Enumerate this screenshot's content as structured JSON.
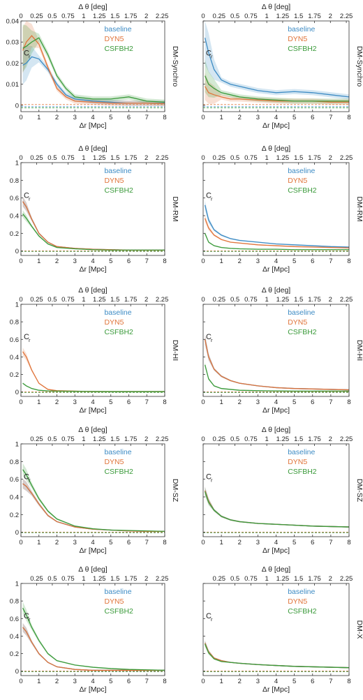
{
  "colors": {
    "baseline": "#3d8bc4",
    "DYN5": "#e0743a",
    "CSFBH2": "#3a9a3a",
    "axis": "#333333",
    "grid": "#cccccc"
  },
  "axes_text": {
    "x_label": "Δr [Mpc]",
    "top_label": "Δ θ [deg]",
    "y_label": "C",
    "y_label_sub": "r"
  },
  "legend": [
    "baseline",
    "DYN5",
    "CSFBH2"
  ],
  "top_ticks": [
    "0",
    "0.25",
    "0.5",
    "0.75",
    "1",
    "1.25",
    "1.5",
    "1.75",
    "2",
    "2.25"
  ],
  "top_tick_values": [
    0,
    0.25,
    0.5,
    0.75,
    1,
    1.25,
    1.5,
    1.75,
    2,
    2.25
  ],
  "chart_data": [
    {
      "type": "line",
      "panel": "row1-left",
      "row_label": "DM-Synchro",
      "xlabel": "Δr [Mpc]",
      "top_xlabel": "Δ θ [deg]",
      "ylabel": "C_r",
      "xlim": [
        0,
        8
      ],
      "ylim": [
        -0.003,
        0.04
      ],
      "yticks": [
        0,
        0.01,
        0.02,
        0.03,
        0.04
      ],
      "ytick_labels": [
        "0",
        "0.01",
        "0.02",
        "0.03",
        "0.04"
      ],
      "top_ticks_shown": [
        0,
        0.25,
        0.5,
        0.75,
        1,
        1.25,
        1.5,
        1.75,
        2,
        2.25
      ],
      "x": [
        0.1,
        0.3,
        0.6,
        1,
        1.5,
        2,
        2.5,
        3,
        4,
        5,
        6,
        7,
        8
      ],
      "series": [
        {
          "name": "baseline",
          "values": [
            0.019,
            0.02,
            0.023,
            0.022,
            0.017,
            0.01,
            0.005,
            0.003,
            0.002,
            0.0015,
            0.001,
            0.001,
            0.001
          ]
        },
        {
          "name": "DYN5",
          "values": [
            0.026,
            0.03,
            0.033,
            0.029,
            0.018,
            0.008,
            0.004,
            0.002,
            0.0015,
            0.001,
            0.001,
            0.001,
            0.0008
          ]
        },
        {
          "name": "CSFBH2",
          "values": [
            0.027,
            0.028,
            0.03,
            0.032,
            0.024,
            0.014,
            0.008,
            0.004,
            0.003,
            0.003,
            0.004,
            0.002,
            0.0015
          ]
        }
      ]
    },
    {
      "type": "line",
      "panel": "row1-right",
      "row_label": "DM-Synchro",
      "xlabel": "Δr [Mpc]",
      "top_xlabel": "Δ θ [deg]",
      "ylabel": "C_r",
      "xlim": [
        0,
        8
      ],
      "ylim": [
        -0.003,
        0.04
      ],
      "yticks": [
        0,
        0.01,
        0.02,
        0.03,
        0.04
      ],
      "ytick_labels": [
        "0",
        "0.01",
        "0.02",
        "0.03",
        "0.04"
      ],
      "top_ticks_shown": [
        0,
        0.25,
        0.5,
        0.75,
        1,
        1.25,
        1.5,
        1.75,
        2,
        2.25
      ],
      "x": [
        0.1,
        0.3,
        0.6,
        1,
        1.5,
        2,
        3,
        4,
        5,
        6,
        7,
        8
      ],
      "series": [
        {
          "name": "baseline",
          "values": [
            0.032,
            0.025,
            0.017,
            0.012,
            0.01,
            0.009,
            0.007,
            0.006,
            0.0065,
            0.006,
            0.005,
            0.004
          ]
        },
        {
          "name": "DYN5",
          "values": [
            0.009,
            0.006,
            0.005,
            0.004,
            0.003,
            0.003,
            0.0025,
            0.002,
            0.002,
            0.002,
            0.0015,
            0.0015
          ]
        },
        {
          "name": "CSFBH2",
          "values": [
            0.014,
            0.01,
            0.008,
            0.006,
            0.005,
            0.004,
            0.003,
            0.0025,
            0.002,
            0.002,
            0.002,
            0.002
          ]
        }
      ]
    },
    {
      "type": "line",
      "panel": "row2-left",
      "row_label": "DM-RM",
      "xlabel": "Δr [Mpc]",
      "top_xlabel": "Δ θ [deg]",
      "ylabel": "C_r",
      "xlim": [
        0,
        8
      ],
      "ylim": [
        -0.05,
        1
      ],
      "yticks": [
        0,
        0.2,
        0.4,
        0.6,
        0.8,
        1
      ],
      "ytick_labels": [
        "0",
        "0.2",
        "0.4",
        "0.6",
        "0.8",
        "1"
      ],
      "top_ticks_shown": [
        0,
        0.25,
        0.5,
        0.75,
        1,
        1.25,
        1.5,
        1.75,
        2,
        2.25
      ],
      "x": [
        0.1,
        0.3,
        0.6,
        1,
        1.5,
        2,
        3,
        4,
        5,
        6,
        7,
        8
      ],
      "series": [
        {
          "name": "baseline",
          "values": [
            0.56,
            0.5,
            0.36,
            0.2,
            0.1,
            0.05,
            0.03,
            0.02,
            0.015,
            0.01,
            0.01,
            0.01
          ]
        },
        {
          "name": "DYN5",
          "values": [
            0.56,
            0.5,
            0.36,
            0.2,
            0.1,
            0.05,
            0.03,
            0.02,
            0.015,
            0.01,
            0.01,
            0.01
          ]
        },
        {
          "name": "CSFBH2",
          "values": [
            0.42,
            0.37,
            0.28,
            0.17,
            0.08,
            0.04,
            0.025,
            0.015,
            0.01,
            0.01,
            0.01,
            0.01
          ]
        }
      ]
    },
    {
      "type": "line",
      "panel": "row2-right",
      "row_label": "DM-RM",
      "xlabel": "Δr [Mpc]",
      "top_xlabel": "Δ θ [deg]",
      "ylabel": "C_r",
      "xlim": [
        0,
        8
      ],
      "ylim": [
        -0.05,
        1
      ],
      "yticks": [
        0,
        0.2,
        0.4,
        0.6,
        0.8,
        1
      ],
      "ytick_labels": [
        "0",
        "0.2",
        "0.4",
        "0.6",
        "0.8",
        "1"
      ],
      "top_ticks_shown": [
        0,
        0.25,
        0.5,
        0.75,
        1,
        1.25,
        1.5,
        1.75,
        2,
        2.25
      ],
      "x": [
        0.1,
        0.3,
        0.6,
        1,
        1.5,
        2,
        3,
        4,
        5,
        6,
        7,
        8
      ],
      "series": [
        {
          "name": "baseline",
          "values": [
            0.52,
            0.35,
            0.24,
            0.18,
            0.14,
            0.12,
            0.1,
            0.08,
            0.07,
            0.06,
            0.05,
            0.045
          ]
        },
        {
          "name": "DYN5",
          "values": [
            0.37,
            0.26,
            0.18,
            0.13,
            0.1,
            0.09,
            0.07,
            0.06,
            0.05,
            0.045,
            0.04,
            0.035
          ]
        },
        {
          "name": "CSFBH2",
          "values": [
            0.2,
            0.1,
            0.06,
            0.04,
            0.03,
            0.025,
            0.02,
            0.02,
            0.015,
            0.015,
            0.015,
            0.015
          ]
        }
      ]
    },
    {
      "type": "line",
      "panel": "row3-left",
      "row_label": "DM-HI",
      "xlabel": "Δr [Mpc]",
      "top_xlabel": "Δ θ [deg]",
      "ylabel": "C_r",
      "xlim": [
        0,
        8
      ],
      "ylim": [
        -0.05,
        1
      ],
      "yticks": [
        0,
        0.2,
        0.4,
        0.6,
        0.8,
        1
      ],
      "ytick_labels": [
        "0",
        "0.2",
        "0.4",
        "0.6",
        "0.8",
        "1"
      ],
      "top_ticks_shown": [
        0,
        0.25,
        0.5,
        0.75,
        1,
        1.25,
        1.5,
        1.75,
        2,
        2.25
      ],
      "x": [
        0.1,
        0.3,
        0.6,
        1,
        1.5,
        2,
        3,
        4,
        5,
        6,
        7,
        8
      ],
      "series": [
        {
          "name": "DYN5",
          "values": [
            0.46,
            0.4,
            0.25,
            0.1,
            0.03,
            0.015,
            0.01,
            0.005,
            0.005,
            0.005,
            0.005,
            0.005
          ]
        },
        {
          "name": "CSFBH2",
          "values": [
            0.1,
            0.07,
            0.04,
            0.02,
            0.012,
            0.01,
            0.008,
            0.006,
            0.005,
            0.005,
            0.005,
            0.005
          ]
        }
      ]
    },
    {
      "type": "line",
      "panel": "row3-right",
      "row_label": "DM-HI",
      "xlabel": "Δr [Mpc]",
      "top_xlabel": "Δ θ [deg]",
      "ylabel": "C_r",
      "xlim": [
        0,
        8
      ],
      "ylim": [
        -0.05,
        1
      ],
      "yticks": [
        0,
        0.2,
        0.4,
        0.6,
        0.8,
        1
      ],
      "ytick_labels": [
        "0",
        "0.2",
        "0.4",
        "0.6",
        "0.8",
        "1"
      ],
      "top_ticks_shown": [
        0,
        0.25,
        0.5,
        0.75,
        1,
        1.25,
        1.5,
        1.75,
        2,
        2.25
      ],
      "x": [
        0.1,
        0.3,
        0.6,
        1,
        1.5,
        2,
        3,
        4,
        5,
        6,
        7,
        8
      ],
      "series": [
        {
          "name": "baseline",
          "values": [
            0.6,
            0.4,
            0.26,
            0.18,
            0.13,
            0.1,
            0.07,
            0.05,
            0.04,
            0.035,
            0.03,
            0.025
          ]
        },
        {
          "name": "DYN5",
          "values": [
            0.6,
            0.4,
            0.26,
            0.18,
            0.13,
            0.1,
            0.07,
            0.05,
            0.04,
            0.035,
            0.03,
            0.025
          ]
        },
        {
          "name": "CSFBH2",
          "values": [
            0.31,
            0.15,
            0.07,
            0.04,
            0.03,
            0.02,
            0.015,
            0.012,
            0.01,
            0.01,
            0.01,
            0.01
          ]
        }
      ]
    },
    {
      "type": "line",
      "panel": "row4-left",
      "row_label": "DM-SZ",
      "xlabel": "Δr [Mpc]",
      "top_xlabel": "Δ θ [deg]",
      "ylabel": "C_r",
      "xlim": [
        0,
        8
      ],
      "ylim": [
        -0.05,
        1
      ],
      "yticks": [
        0,
        0.2,
        0.4,
        0.6,
        0.8,
        1
      ],
      "ytick_labels": [
        "0",
        "0.2",
        "0.4",
        "0.6",
        "0.8",
        "1"
      ],
      "top_ticks_shown": [
        0.25,
        0.5,
        0.75,
        1,
        1.25,
        1.5,
        1.75,
        2,
        2.25
      ],
      "x": [
        0.1,
        0.3,
        0.6,
        1,
        1.5,
        2,
        3,
        4,
        5,
        6,
        7,
        8
      ],
      "series": [
        {
          "name": "baseline",
          "values": [
            0.55,
            0.52,
            0.44,
            0.32,
            0.19,
            0.12,
            0.06,
            0.035,
            0.025,
            0.015,
            0.01,
            0.01
          ]
        },
        {
          "name": "DYN5",
          "values": [
            0.55,
            0.52,
            0.44,
            0.32,
            0.19,
            0.12,
            0.06,
            0.035,
            0.025,
            0.015,
            0.01,
            0.01
          ]
        },
        {
          "name": "CSFBH2",
          "values": [
            0.71,
            0.65,
            0.53,
            0.38,
            0.24,
            0.15,
            0.07,
            0.04,
            0.025,
            0.02,
            0.015,
            0.01
          ]
        }
      ]
    },
    {
      "type": "line",
      "panel": "row4-right",
      "row_label": "DM-SZ",
      "xlabel": "Δr [Mpc]",
      "top_xlabel": "Δ θ [deg]",
      "ylabel": "C_r",
      "xlim": [
        0,
        8
      ],
      "ylim": [
        -0.05,
        1
      ],
      "yticks": [
        0,
        0.2,
        0.4,
        0.6,
        0.8,
        1
      ],
      "ytick_labels": [
        "0",
        "0.2",
        "0.4",
        "0.6",
        "0.8",
        "1"
      ],
      "top_ticks_shown": [
        0,
        0.25,
        0.5,
        0.75,
        1,
        1.25,
        1.5,
        1.75,
        2,
        2.25
      ],
      "x": [
        0.1,
        0.3,
        0.6,
        1,
        1.5,
        2,
        3,
        4,
        5,
        6,
        7,
        8
      ],
      "series": [
        {
          "name": "baseline",
          "values": [
            0.47,
            0.35,
            0.25,
            0.18,
            0.14,
            0.12,
            0.1,
            0.09,
            0.08,
            0.07,
            0.065,
            0.06
          ]
        },
        {
          "name": "DYN5",
          "values": [
            0.47,
            0.35,
            0.25,
            0.18,
            0.14,
            0.12,
            0.1,
            0.09,
            0.08,
            0.07,
            0.065,
            0.06
          ]
        },
        {
          "name": "CSFBH2",
          "values": [
            0.46,
            0.34,
            0.25,
            0.18,
            0.14,
            0.12,
            0.1,
            0.09,
            0.08,
            0.07,
            0.065,
            0.06
          ]
        }
      ]
    },
    {
      "type": "line",
      "panel": "row5-left",
      "row_label": "",
      "xlabel": "Δr [Mpc]",
      "top_xlabel": "Δ θ [deg]",
      "ylabel": "C_r",
      "xlim": [
        0,
        8
      ],
      "ylim": [
        -0.05,
        1
      ],
      "yticks": [
        0,
        0.2,
        0.4,
        0.6,
        0.8,
        1
      ],
      "ytick_labels": [
        "0",
        "0.2",
        "0.4",
        "0.6",
        "0.8",
        "1"
      ],
      "top_ticks_shown": [
        0.25,
        0.5,
        0.75,
        1,
        1.25,
        1.5,
        1.75,
        2,
        2.25
      ],
      "x": [
        0.1,
        0.3,
        0.6,
        1,
        1.5,
        2,
        3,
        4,
        5,
        6,
        7,
        8
      ],
      "series": [
        {
          "name": "baseline",
          "values": [
            0.5,
            0.45,
            0.33,
            0.2,
            0.1,
            0.05,
            0.02,
            0.01,
            0.01,
            0.01,
            0.01,
            0.01
          ]
        },
        {
          "name": "DYN5",
          "values": [
            0.5,
            0.45,
            0.33,
            0.2,
            0.1,
            0.05,
            0.02,
            0.01,
            0.01,
            0.01,
            0.01,
            0.01
          ]
        },
        {
          "name": "CSFBH2",
          "values": [
            0.72,
            0.64,
            0.5,
            0.35,
            0.2,
            0.12,
            0.07,
            0.045,
            0.03,
            0.02,
            0.015,
            0.01
          ]
        }
      ]
    },
    {
      "type": "line",
      "panel": "row5-right",
      "row_label": "DM-X",
      "xlabel": "Δr [Mpc]",
      "top_xlabel": "Δ θ [deg]",
      "ylabel": "C_r",
      "xlim": [
        0,
        8
      ],
      "ylim": [
        -0.05,
        1
      ],
      "yticks": [
        0,
        0.2,
        0.4,
        0.6,
        0.8,
        1
      ],
      "ytick_labels": [
        "0",
        "0.2",
        "0.4",
        "0.6",
        "0.8",
        "1"
      ],
      "top_ticks_shown": [
        0.25,
        0.5,
        0.75,
        1,
        1.25,
        1.5,
        1.75,
        2,
        2.25
      ],
      "x": [
        0.1,
        0.3,
        0.6,
        1,
        1.5,
        2,
        3,
        4,
        5,
        6,
        7,
        8
      ],
      "series": [
        {
          "name": "baseline",
          "values": [
            0.32,
            0.22,
            0.15,
            0.12,
            0.1,
            0.09,
            0.075,
            0.065,
            0.055,
            0.05,
            0.045,
            0.04
          ]
        },
        {
          "name": "DYN5",
          "values": [
            0.32,
            0.22,
            0.15,
            0.12,
            0.1,
            0.09,
            0.075,
            0.065,
            0.055,
            0.05,
            0.045,
            0.04
          ]
        },
        {
          "name": "CSFBH2",
          "values": [
            0.31,
            0.21,
            0.14,
            0.11,
            0.1,
            0.09,
            0.075,
            0.065,
            0.055,
            0.05,
            0.045,
            0.04
          ]
        }
      ]
    }
  ]
}
